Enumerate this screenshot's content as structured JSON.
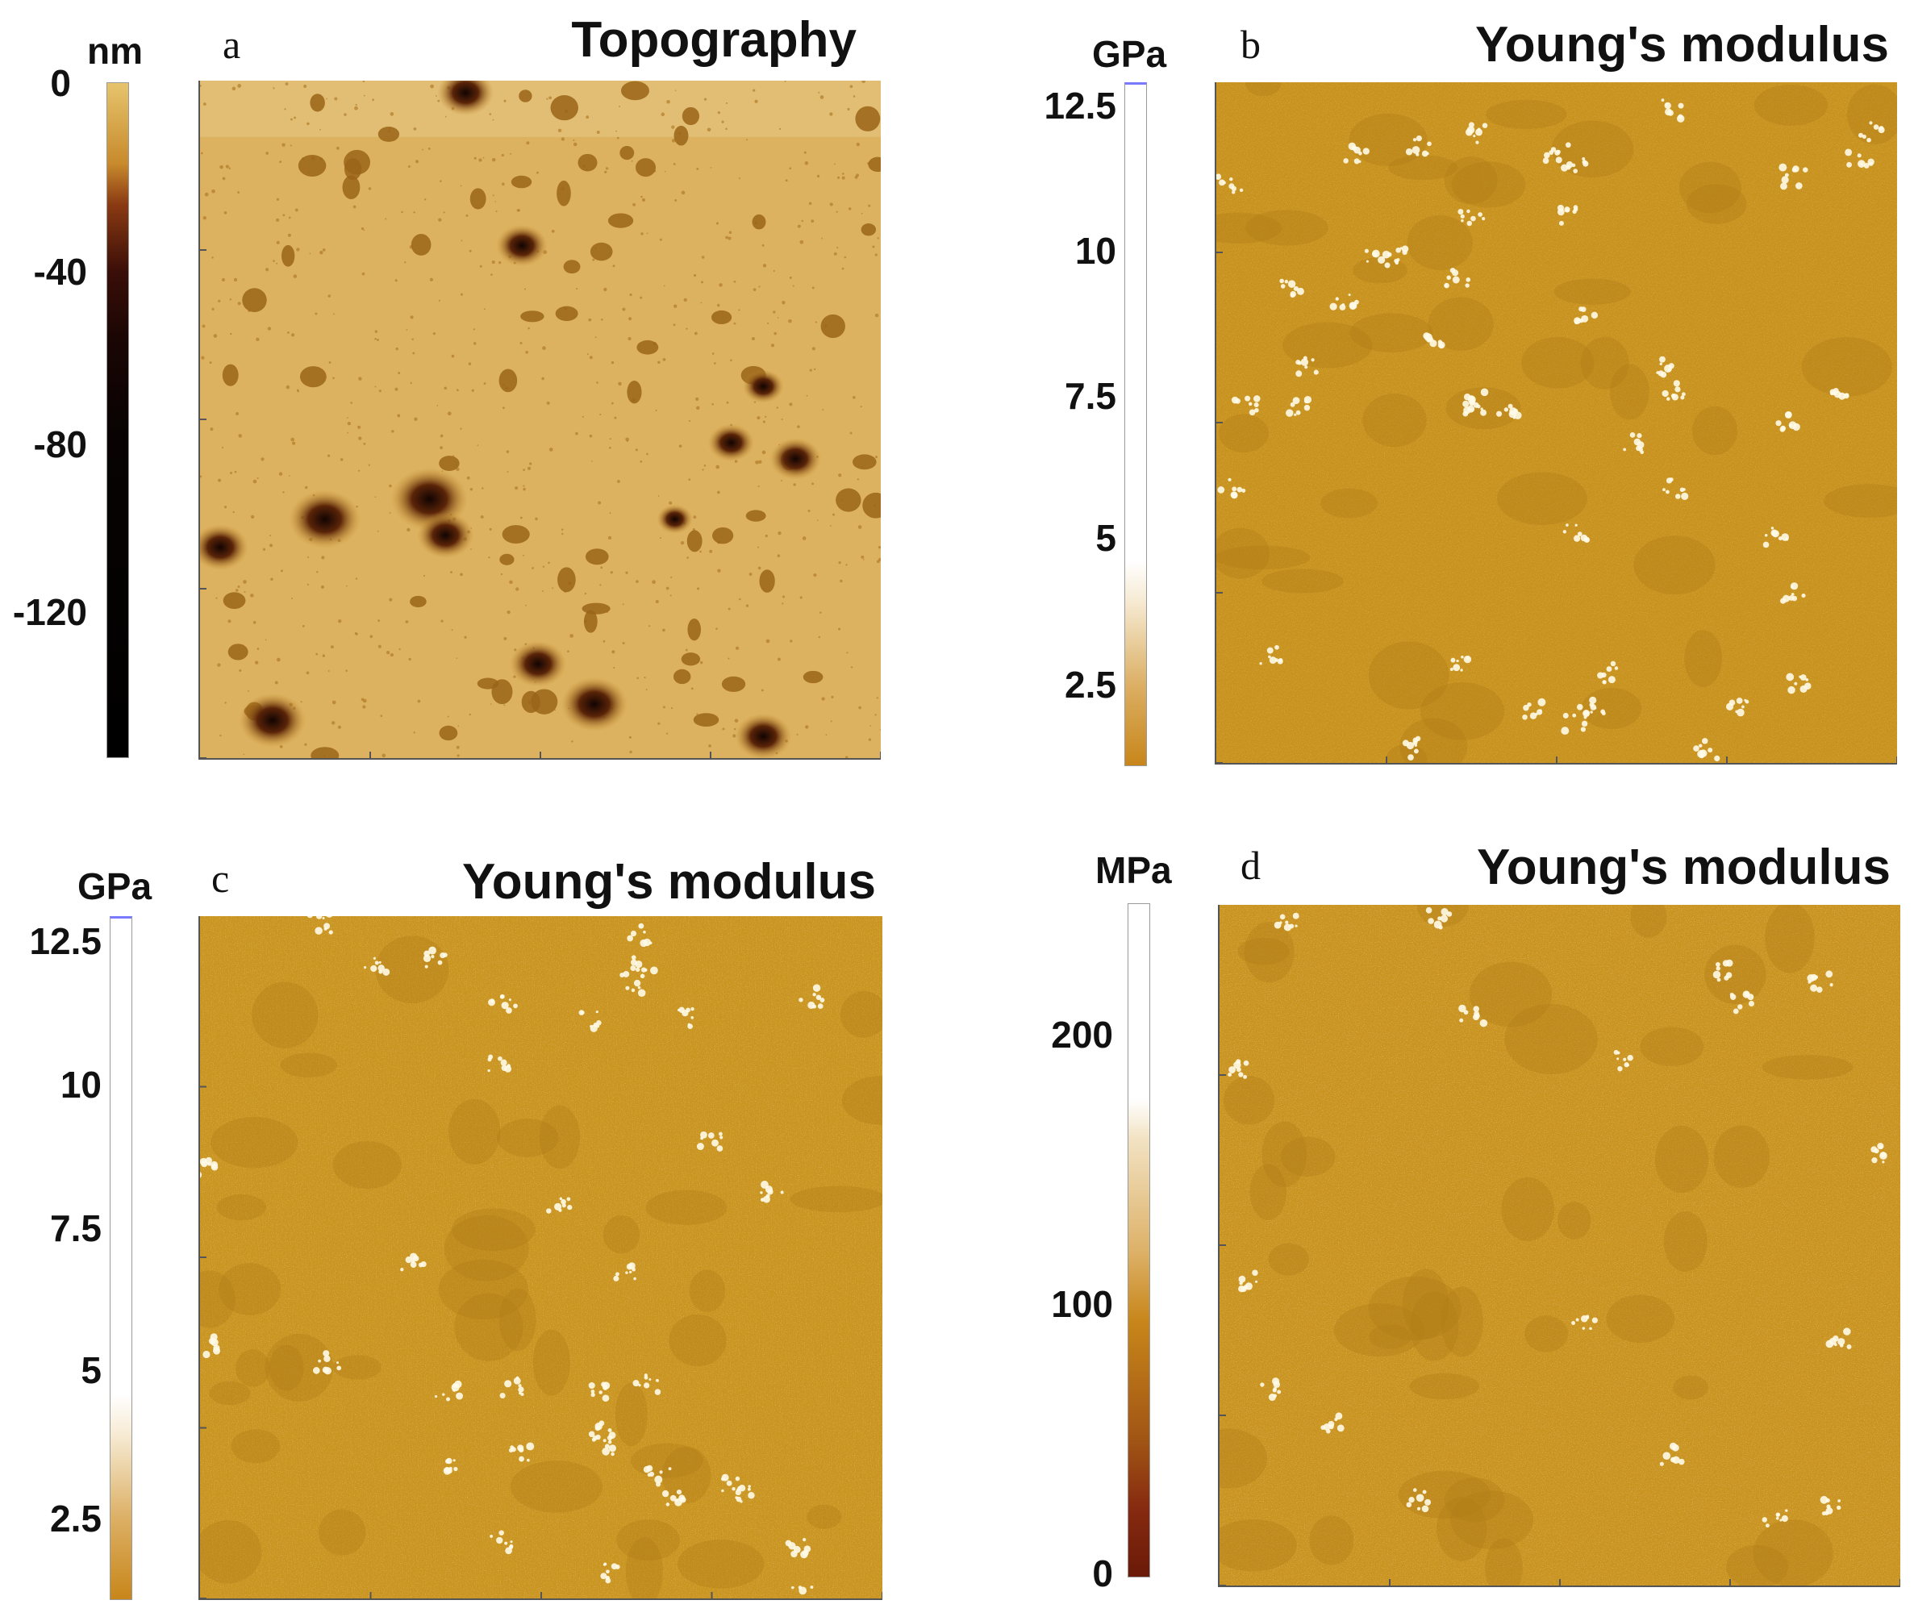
{
  "panels": [
    {
      "letter": "a",
      "title": "Topography",
      "unit": "nm",
      "ticks": [
        "0",
        "-40",
        "-80",
        "-120"
      ],
      "colormap": "afm-gold-dark"
    },
    {
      "letter": "b",
      "title": "Young's modulus",
      "unit": "GPa",
      "ticks": [
        "12.5",
        "10",
        "7.5",
        "5",
        "2.5"
      ],
      "colormap": "afm-gold-light"
    },
    {
      "letter": "c",
      "title": "Young's modulus",
      "unit": "GPa",
      "ticks": [
        "12.5",
        "10",
        "7.5",
        "5",
        "2.5"
      ],
      "colormap": "afm-gold-light"
    },
    {
      "letter": "d",
      "title": "Young's modulus",
      "unit": "MPa",
      "ticks": [
        "200",
        "100",
        "0"
      ],
      "colormap": "afm-gold-red"
    }
  ],
  "colors": {
    "gold": "#c8901e",
    "light_gold": "#e2c68a",
    "dark": "#1a0a04",
    "white": "#ffffff"
  }
}
